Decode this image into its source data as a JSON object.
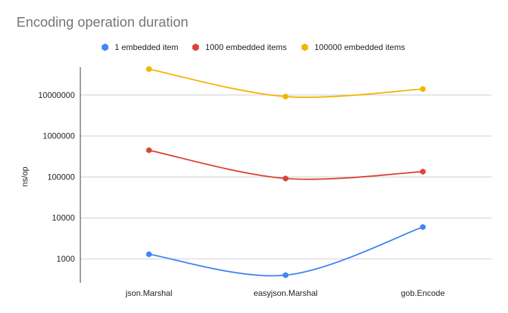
{
  "chart_data": {
    "type": "line",
    "title": "Encoding operation duration",
    "ylabel": "ns/op",
    "xlabel": "",
    "yscale": "log",
    "ylim": [
      300,
      60000000
    ],
    "yticks": [
      1000,
      10000,
      100000,
      1000000,
      10000000
    ],
    "ytick_labels": [
      "1000",
      "10000",
      "100000",
      "1000000",
      "10000000"
    ],
    "categories": [
      "json.Marshal",
      "easyjson.Marshal",
      "gob.Encode"
    ],
    "legend_position": "top",
    "grid": true,
    "smooth": true,
    "series": [
      {
        "name": "1 embedded item",
        "color": "#4285f4",
        "values": [
          1300,
          400,
          6000
        ]
      },
      {
        "name": "1000 embedded items",
        "color": "#db4437",
        "values": [
          450000,
          92000,
          135000
        ]
      },
      {
        "name": "100000 embedded items",
        "color": "#f4b400",
        "values": [
          43000000,
          9200000,
          14000000
        ]
      }
    ]
  }
}
